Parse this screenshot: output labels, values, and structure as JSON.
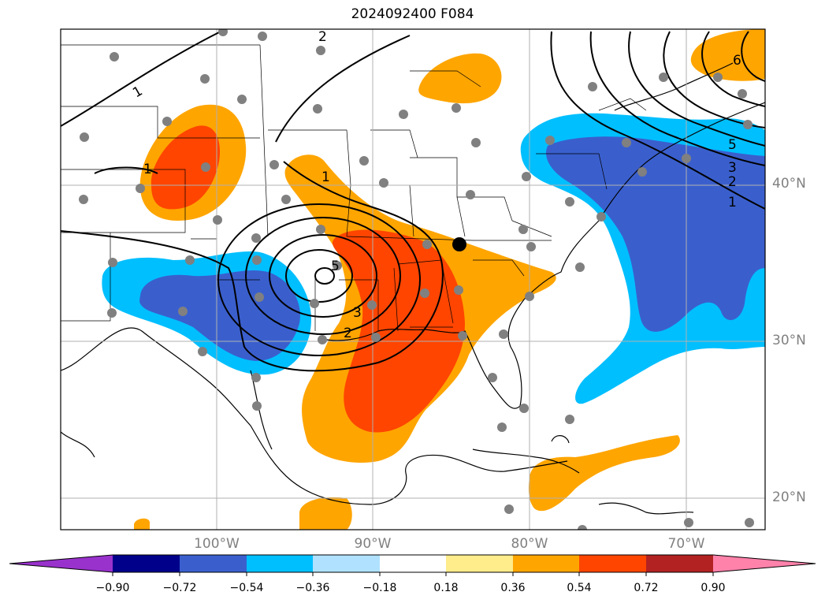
{
  "title": "2024092400 F084",
  "map": {
    "lat_labels": [
      "40°N",
      "30°N",
      "20°N"
    ],
    "lon_labels": [
      "100°W",
      "90°W",
      "80°W",
      "70°W"
    ],
    "contour_labels": [
      "2",
      "1",
      "6",
      "5",
      "3",
      "2",
      "1",
      "1",
      "5",
      "3",
      "2",
      "1"
    ],
    "marker": "black-dot",
    "colors": {
      "dark_blue": "#3a5fcd",
      "light_blue": "#00bfff",
      "pale_blue": "#b0e2ff",
      "yellow": "#ffec8b",
      "orange": "#ffa500",
      "red_orange": "#ff4500",
      "dark_red": "#b22222",
      "pink": "#ff82ab",
      "purple": "#9932cc",
      "navy": "#00008b",
      "station": "#808080"
    }
  },
  "colorbar": {
    "ticks": [
      "−0.90",
      "−0.72",
      "−0.54",
      "−0.36",
      "−0.18",
      "0.18",
      "0.36",
      "0.54",
      "0.72",
      "0.90"
    ],
    "colors": [
      "#9932cc",
      "#00008b",
      "#3a5fcd",
      "#00bfff",
      "#b0e2ff",
      "#ffffff",
      "#ffec8b",
      "#ffa500",
      "#ff4500",
      "#b22222",
      "#ff82ab"
    ]
  }
}
